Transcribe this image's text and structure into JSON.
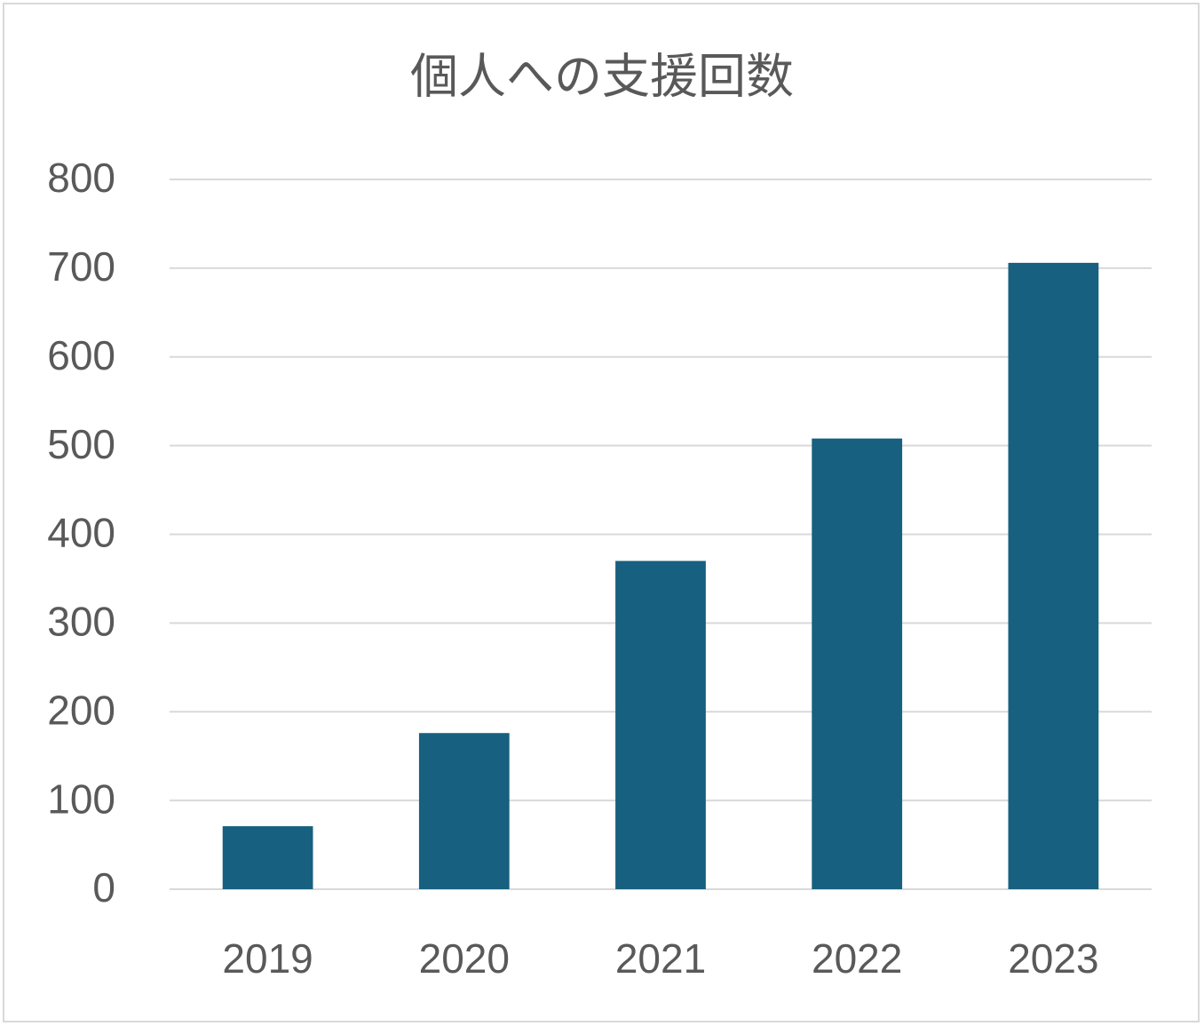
{
  "chart_data": {
    "type": "bar",
    "title": "個人への支援回数",
    "categories": [
      "2019",
      "2020",
      "2021",
      "2022",
      "2023"
    ],
    "values": [
      71,
      176,
      370,
      508,
      706
    ],
    "color": "#17607f",
    "ylim": [
      0,
      800
    ],
    "yticks": [
      0,
      100,
      200,
      300,
      400,
      500,
      600,
      700,
      800
    ],
    "grid": true
  }
}
